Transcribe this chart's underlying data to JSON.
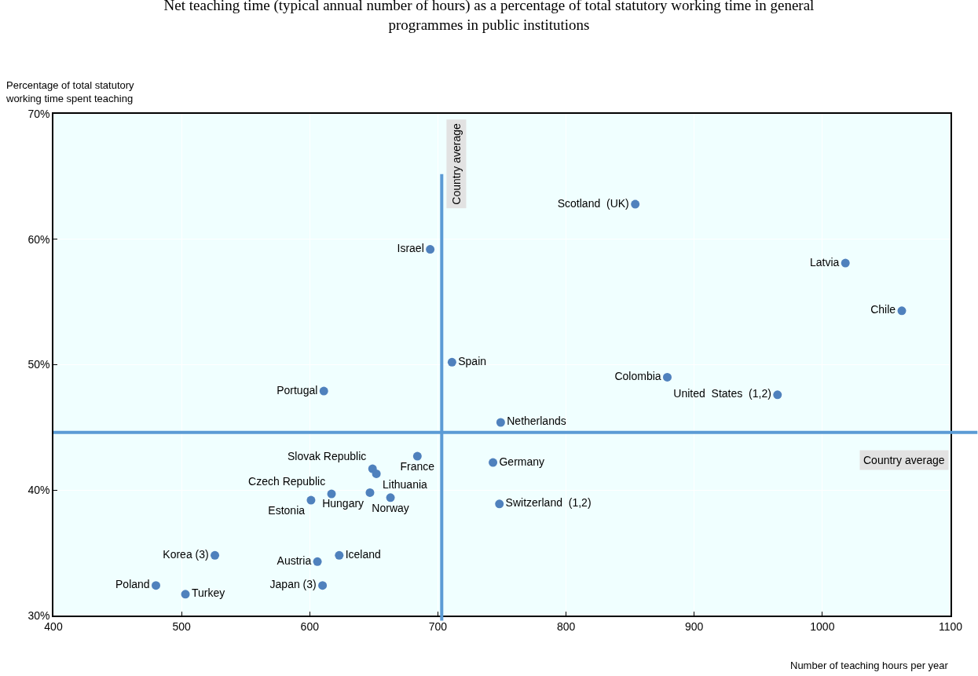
{
  "chart_data": {
    "type": "scatter",
    "title": "Net teaching time (typical annual number of hours) as a percentage of total statutory working time in general programmes in public institutions",
    "xlabel": "Number of teaching hours per year",
    "ylabel": "Percentage of total statutory working time spent teaching",
    "xlim": [
      400,
      1100
    ],
    "xticks": [
      400,
      500,
      600,
      700,
      800,
      900,
      1000,
      1100
    ],
    "ylim": [
      30,
      70
    ],
    "yticks": [
      {
        "value": 30,
        "label": "30%"
      },
      {
        "value": 40,
        "label": "40%"
      },
      {
        "value": 50,
        "label": "50%"
      },
      {
        "value": 60,
        "label": "60%"
      },
      {
        "value": 70,
        "label": "70%"
      }
    ],
    "grid": true,
    "legend": false,
    "marker": "circle",
    "ref_lines": [
      {
        "axis": "x",
        "value": 703,
        "label": "Country average",
        "color": "#5b9bd5"
      },
      {
        "axis": "y",
        "value": 44.6,
        "label": "Country average",
        "color": "#5b9bd5"
      }
    ],
    "series": [
      {
        "name": "Scotland  (UK)",
        "color": "#4f81bd",
        "x": [
          854
        ],
        "values": [
          62.8
        ]
      },
      {
        "name": "Israel",
        "color": "#4f81bd",
        "x": [
          694
        ],
        "values": [
          59.2
        ]
      },
      {
        "name": "Latvia",
        "color": "#4f81bd",
        "x": [
          1018
        ],
        "values": [
          58.1
        ]
      },
      {
        "name": "Chile",
        "color": "#4f81bd",
        "x": [
          1062
        ],
        "values": [
          54.3
        ]
      },
      {
        "name": "Spain",
        "color": "#4f81bd",
        "x": [
          711
        ],
        "values": [
          50.2
        ]
      },
      {
        "name": "Colombia",
        "color": "#4f81bd",
        "x": [
          879
        ],
        "values": [
          49.0
        ]
      },
      {
        "name": "United  States  (1,2)",
        "color": "#4f81bd",
        "x": [
          965
        ],
        "values": [
          47.6
        ]
      },
      {
        "name": "Portugal",
        "color": "#4f81bd",
        "x": [
          611
        ],
        "values": [
          47.9
        ]
      },
      {
        "name": "Netherlands",
        "color": "#4f81bd",
        "x": [
          749
        ],
        "values": [
          45.4
        ]
      },
      {
        "name": "France",
        "color": "#4f81bd",
        "x": [
          684
        ],
        "values": [
          42.7
        ]
      },
      {
        "name": "Germany",
        "color": "#4f81bd",
        "x": [
          743
        ],
        "values": [
          42.2
        ]
      },
      {
        "name": "Slovak Republic",
        "color": "#4f81bd",
        "x": [
          649
        ],
        "values": [
          41.7
        ]
      },
      {
        "name": "Lithuania",
        "color": "#4f81bd",
        "x": [
          652
        ],
        "values": [
          41.3
        ]
      },
      {
        "name": "Czech Republic",
        "color": "#4f81bd",
        "x": [
          617
        ],
        "values": [
          39.7
        ]
      },
      {
        "name": "Hungary",
        "color": "#4f81bd",
        "x": [
          647
        ],
        "values": [
          39.8
        ]
      },
      {
        "name": "Estonia",
        "color": "#4f81bd",
        "x": [
          601
        ],
        "values": [
          39.2
        ]
      },
      {
        "name": "Norway",
        "color": "#4f81bd",
        "x": [
          663
        ],
        "values": [
          39.4
        ]
      },
      {
        "name": "Switzerland  (1,2)",
        "color": "#4f81bd",
        "x": [
          748
        ],
        "values": [
          38.9
        ]
      },
      {
        "name": "Korea (3)",
        "color": "#4f81bd",
        "x": [
          526
        ],
        "values": [
          34.8
        ]
      },
      {
        "name": "Austria",
        "color": "#4f81bd",
        "x": [
          606
        ],
        "values": [
          34.3
        ]
      },
      {
        "name": "Iceland",
        "color": "#4f81bd",
        "x": [
          623
        ],
        "values": [
          34.8
        ]
      },
      {
        "name": "Poland",
        "color": "#4f81bd",
        "x": [
          480
        ],
        "values": [
          32.4
        ]
      },
      {
        "name": "Turkey",
        "color": "#4f81bd",
        "x": [
          503
        ],
        "values": [
          31.7
        ]
      },
      {
        "name": "Japan (3)",
        "color": "#4f81bd",
        "x": [
          610
        ],
        "values": [
          32.4
        ]
      }
    ]
  }
}
